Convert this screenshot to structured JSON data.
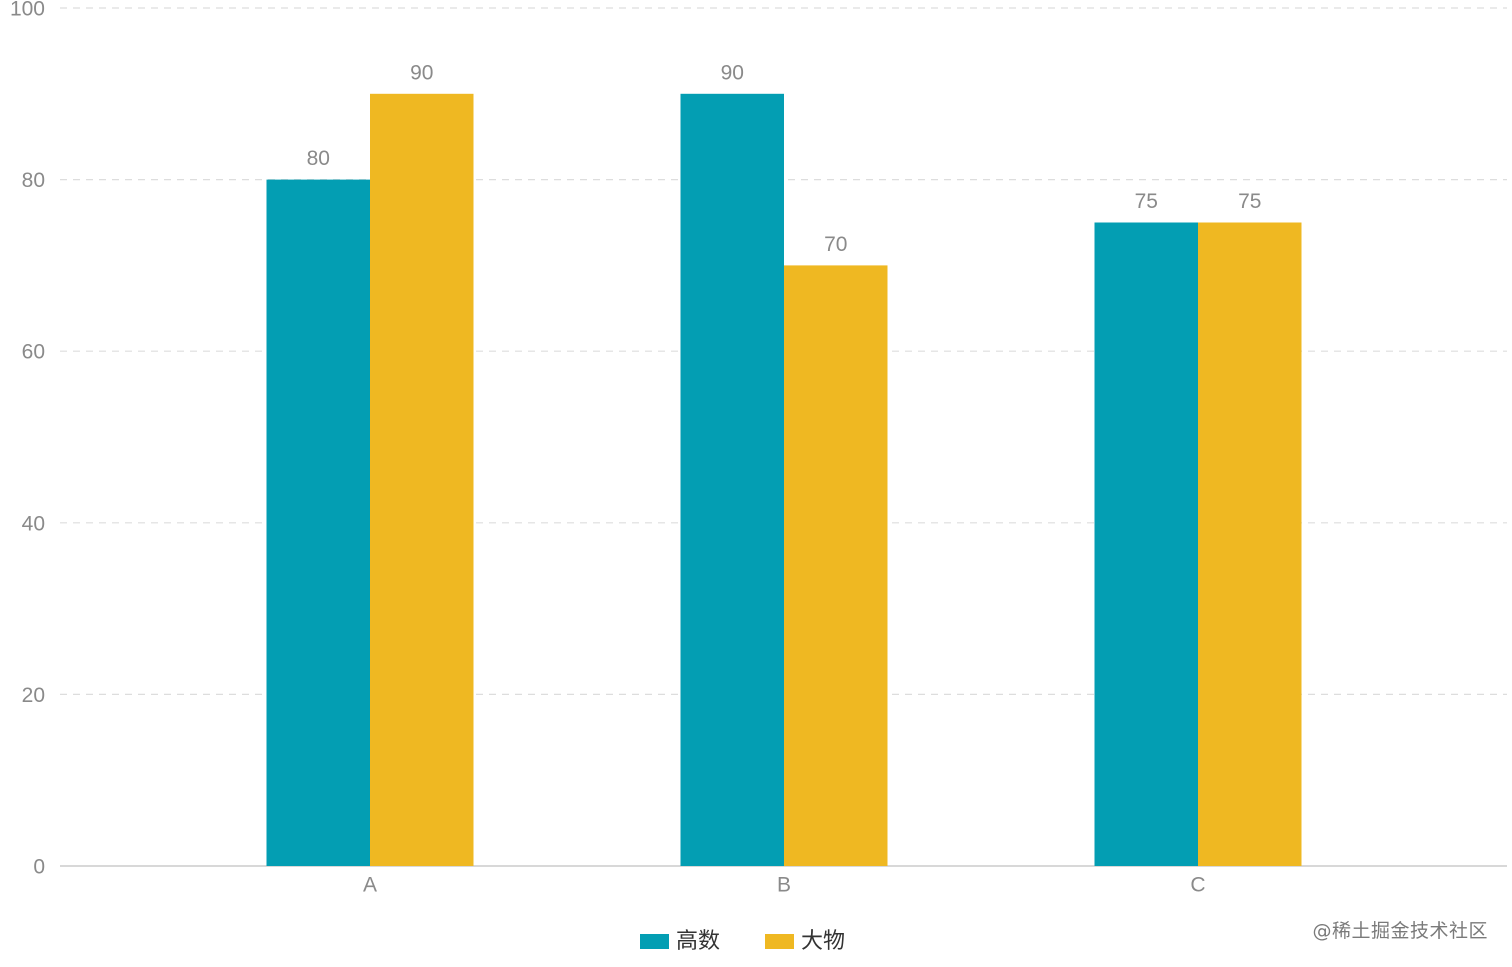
{
  "colors": {
    "series_1": "#039eb3",
    "series_2": "#efb822",
    "grid": "#dddddd",
    "axis": "#cccccc",
    "text": "#8a8a8a"
  },
  "chart_data": {
    "type": "bar",
    "categories": [
      "A",
      "B",
      "C"
    ],
    "series": [
      {
        "name": "高数",
        "values": [
          80,
          90,
          75
        ]
      },
      {
        "name": "大物",
        "values": [
          90,
          70,
          75
        ]
      }
    ],
    "title": "",
    "xlabel": "",
    "ylabel": "",
    "ylim": [
      0,
      100
    ],
    "yticks": [
      0,
      20,
      40,
      60,
      80,
      100
    ],
    "grid": "dashed horizontal",
    "legend": "bottom-center",
    "data_labels": true
  },
  "watermark": "@稀土掘金技术社区"
}
